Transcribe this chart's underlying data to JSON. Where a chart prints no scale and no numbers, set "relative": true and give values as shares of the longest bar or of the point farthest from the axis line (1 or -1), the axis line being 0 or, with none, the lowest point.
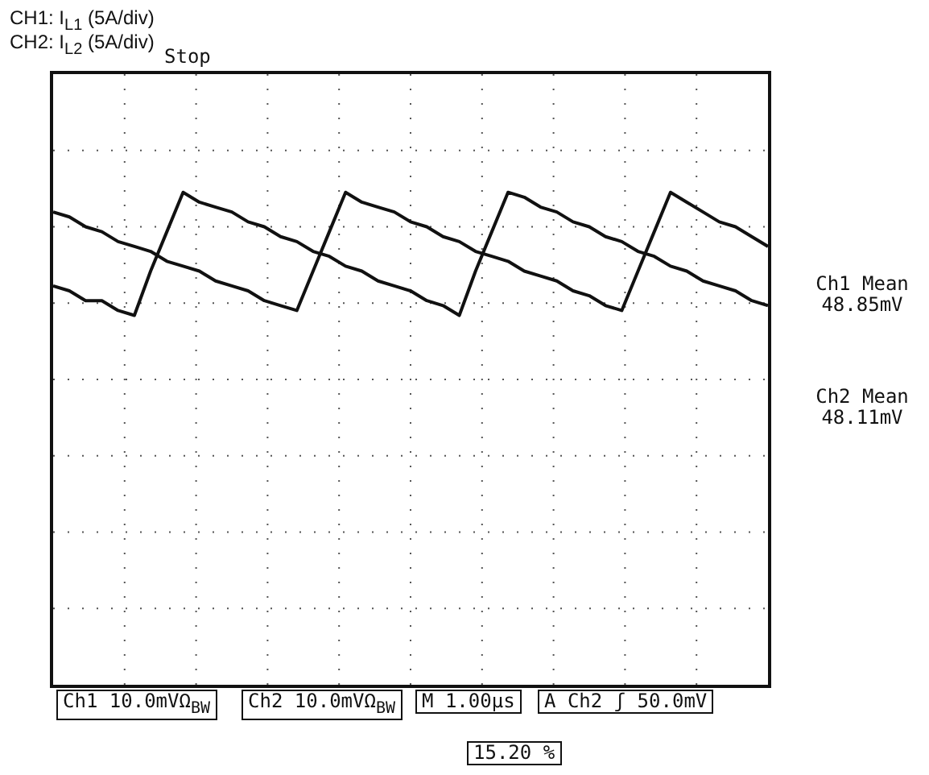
{
  "chart_data": {
    "type": "line",
    "title": "CH1: I$_{L1}$ (5A/div)",
    "subtitle": "CH2: I$_{L2}$ (5A/div)",
    "annotations": [
      "Stop",
      "Ch1 Mean 48.85mV",
      "Ch2 Mean 48.11mV",
      "Ch1 10.0mVΩ$_{BW}$",
      "Ch2 10.0mVΩ$_{BW}$",
      "M 1.00µs",
      "A Ch2 ʃ 50.0mV",
      "15.20 %"
    ],
    "relative": true,
    "categories": [
      null,
      null,
      null,
      null,
      null,
      null,
      null,
      null,
      null,
      null,
      null,
      null,
      null,
      null,
      null,
      null,
      null,
      null,
      null,
      null,
      null,
      null,
      null,
      null,
      null,
      null,
      null,
      null,
      null,
      null,
      null,
      null,
      null,
      null,
      null,
      null,
      null,
      null,
      null,
      null,
      null,
      null,
      null,
      null,
      null
    ],
    "grid": true,
    "legend": false,
    "marker": "none",
    "line_style": "solid",
    "series": [
      {
        "color": "#111111",
        "values": [
          0.96,
          0.95,
          0.93,
          0.92,
          0.9,
          0.89,
          0.88,
          0.86,
          0.85,
          0.84,
          0.82,
          0.81,
          0.8,
          0.78,
          0.77,
          0.76,
          0.84,
          0.92,
          1,
          0.98,
          0.97,
          0.96,
          0.94,
          0.93,
          0.91,
          0.9,
          0.88,
          0.87,
          0.86,
          0.84,
          0.83,
          0.82,
          0.8,
          0.79,
          0.77,
          0.76,
          0.84,
          0.92,
          1,
          0.98,
          0.96,
          0.94,
          0.93,
          0.91,
          0.89
        ]
      },
      {
        "color": "#111111",
        "values": [
          0.81,
          0.8,
          0.78,
          0.78,
          0.76,
          0.75,
          0.84,
          0.92,
          1,
          0.98,
          0.97,
          0.96,
          0.94,
          0.93,
          0.91,
          0.9,
          0.88,
          0.87,
          0.85,
          0.84,
          0.82,
          0.81,
          0.8,
          0.78,
          0.77,
          0.75,
          0.84,
          0.92,
          1,
          0.99,
          0.97,
          0.96,
          0.94,
          0.93,
          0.91,
          0.9,
          0.88,
          0.87,
          0.85,
          0.84,
          0.82,
          0.81,
          0.8,
          0.78,
          0.77
        ]
      }
    ]
  }
}
